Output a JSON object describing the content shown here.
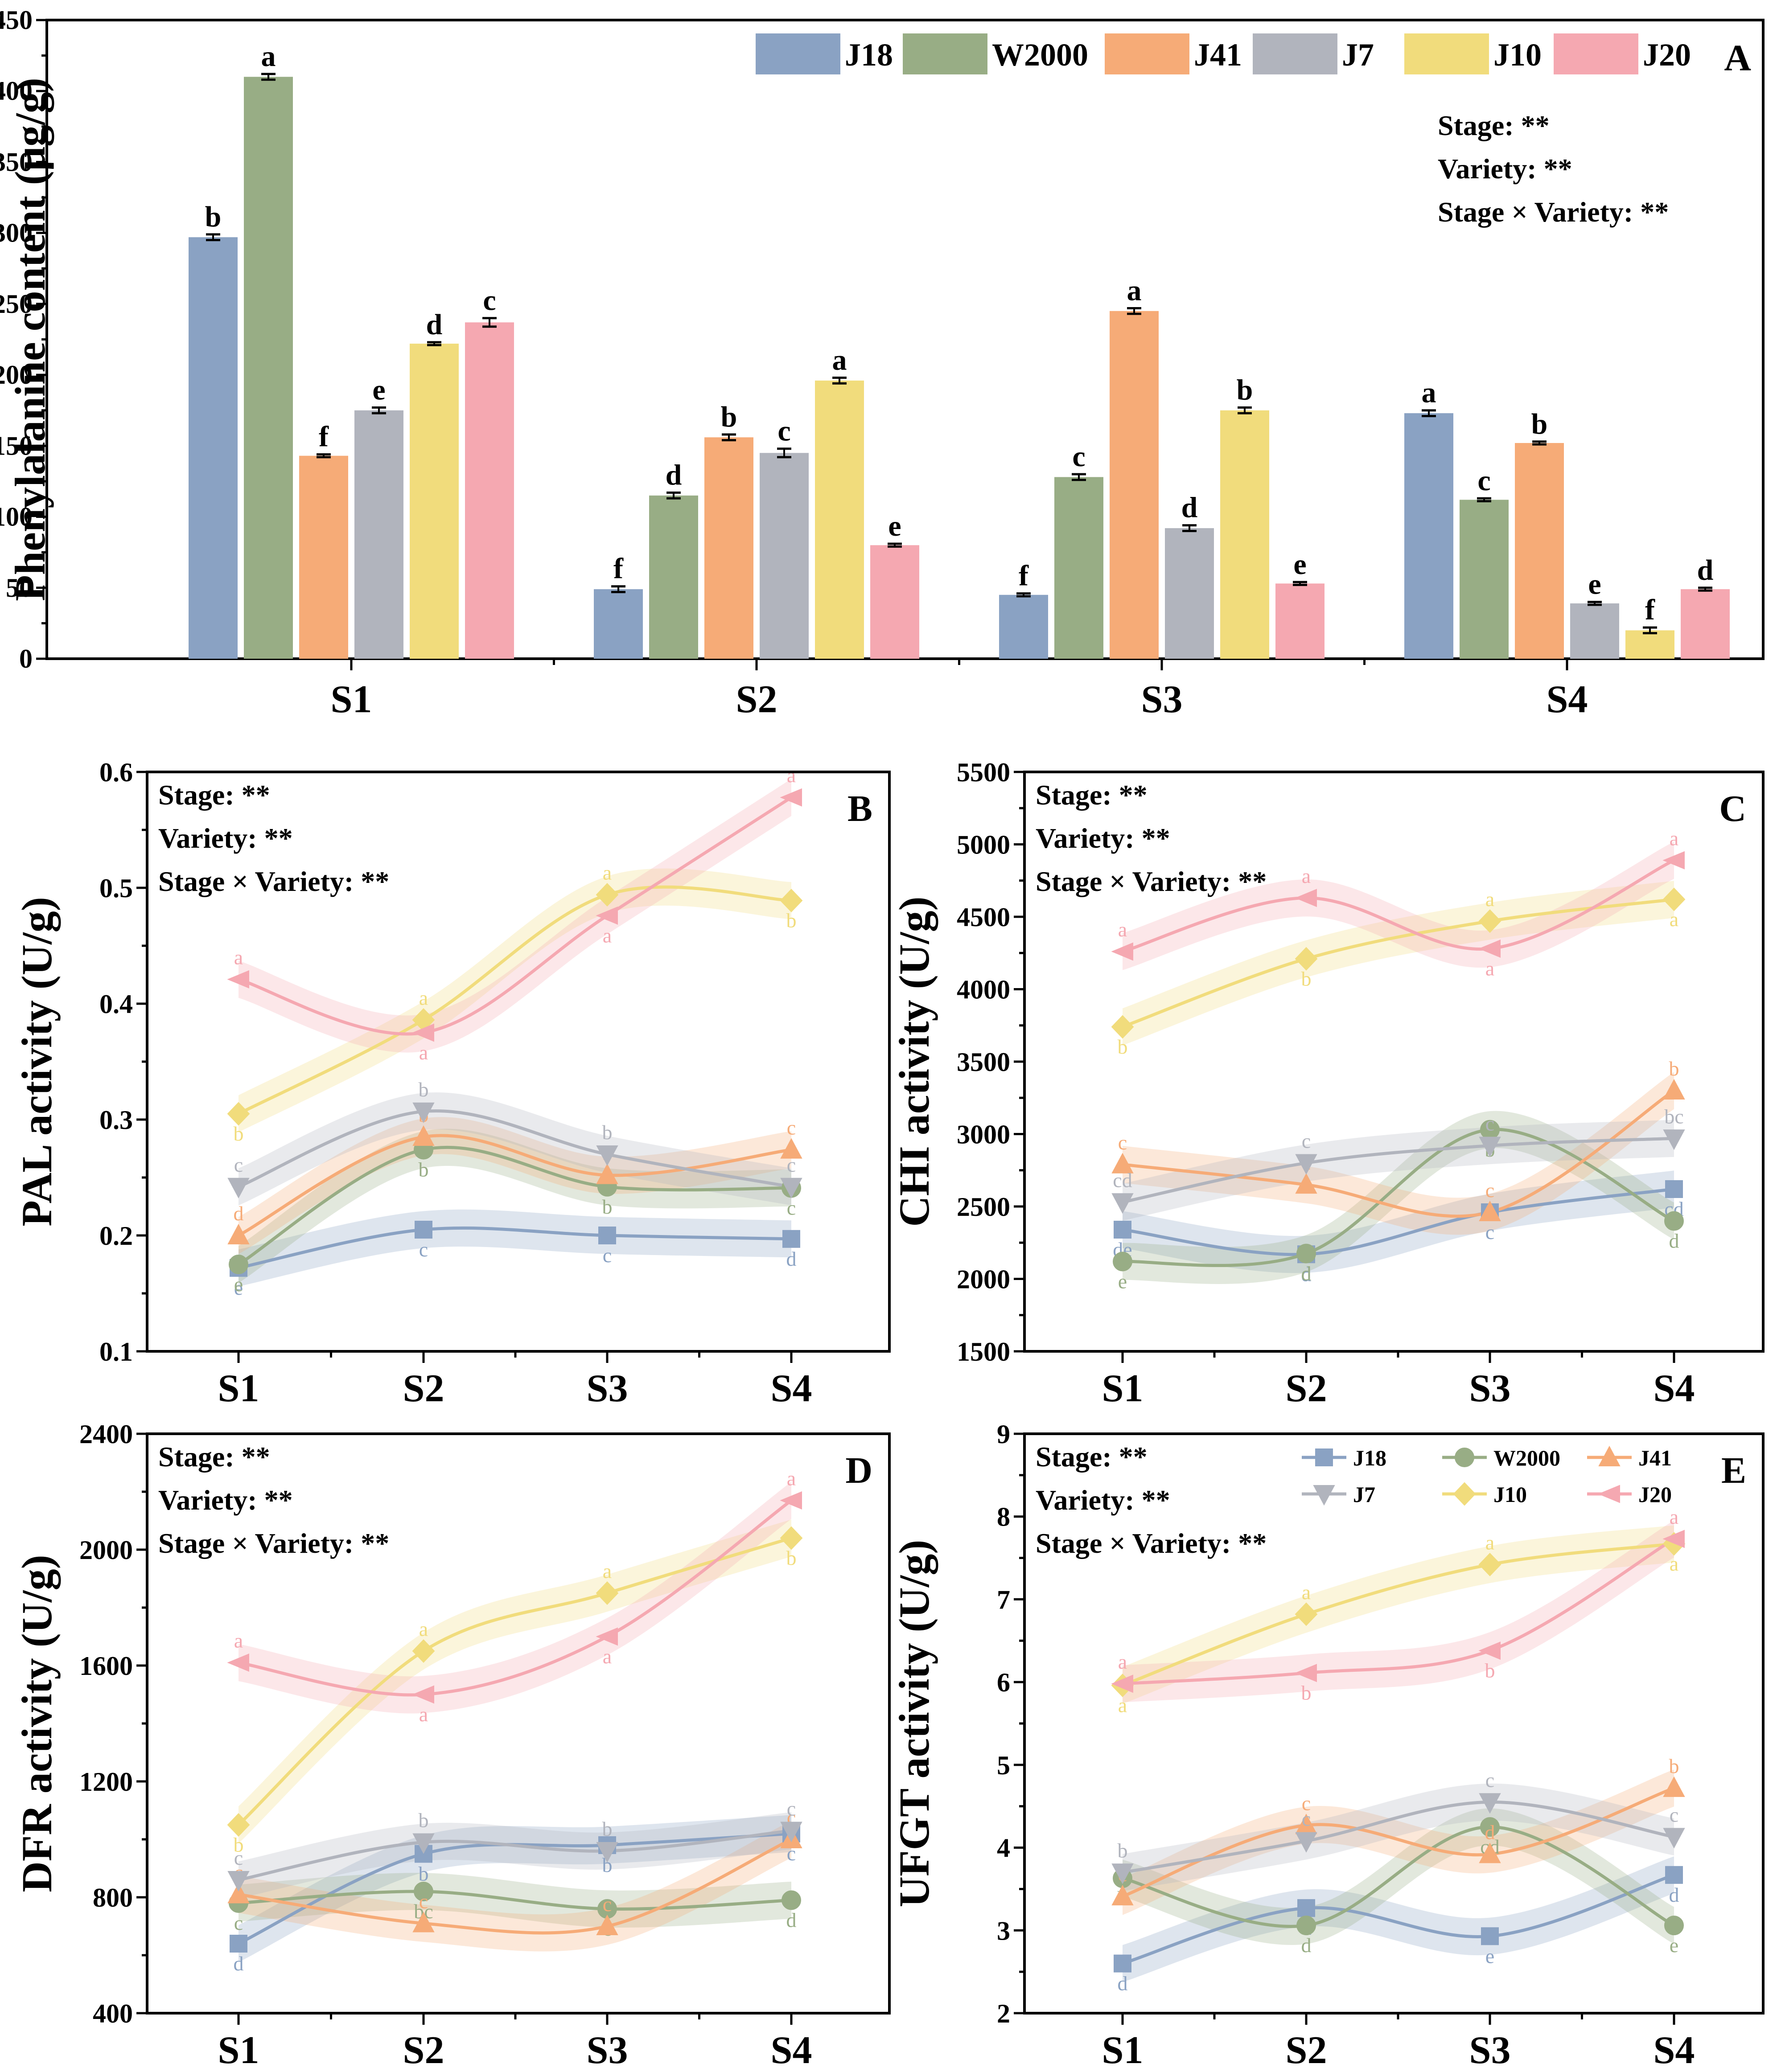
{
  "colors": {
    "J18": "#8aa2c3",
    "W2000": "#98ad85",
    "J41": "#f6ab77",
    "J7": "#b1b4bd",
    "J10": "#f1dc7c",
    "J20": "#f5a8b1"
  },
  "stats_lines": [
    "Stage: **",
    "Variety: **",
    "Stage × Variety: **"
  ],
  "chart_data": [
    {
      "panel": "A",
      "type": "bar",
      "ylabel": "Phenylalanine content (μg/g)",
      "ylim": [
        0,
        450
      ],
      "yticks": [
        0,
        50,
        100,
        150,
        200,
        250,
        300,
        350,
        400,
        450
      ],
      "categories": [
        "S1",
        "S2",
        "S3",
        "S4"
      ],
      "series": [
        {
          "name": "J18",
          "values": [
            297,
            49,
            45,
            173
          ],
          "errors": [
            2,
            2,
            1,
            2
          ],
          "letters": [
            "b",
            "f",
            "f",
            "a"
          ]
        },
        {
          "name": "W2000",
          "values": [
            410,
            115,
            128,
            112
          ],
          "errors": [
            2,
            2,
            2,
            1
          ],
          "letters": [
            "a",
            "d",
            "c",
            "c"
          ]
        },
        {
          "name": "J41",
          "values": [
            143,
            156,
            245,
            152
          ],
          "errors": [
            1,
            2,
            2,
            1
          ],
          "letters": [
            "f",
            "b",
            "a",
            "b"
          ]
        },
        {
          "name": "J7",
          "values": [
            175,
            145,
            92,
            39
          ],
          "errors": [
            2,
            3,
            2,
            1
          ],
          "letters": [
            "e",
            "c",
            "d",
            "e"
          ]
        },
        {
          "name": "J10",
          "values": [
            222,
            196,
            175,
            20
          ],
          "errors": [
            1,
            2,
            2,
            2
          ],
          "letters": [
            "d",
            "a",
            "b",
            "f"
          ]
        },
        {
          "name": "J20",
          "values": [
            237,
            80,
            53,
            49
          ],
          "errors": [
            3,
            1,
            1,
            1
          ],
          "letters": [
            "c",
            "e",
            "e",
            "d"
          ]
        }
      ]
    },
    {
      "panel": "B",
      "type": "line",
      "ylabel": "PAL activity (U/g)",
      "ylim": [
        0.1,
        0.6
      ],
      "yticks": [
        0.1,
        0.2,
        0.3,
        0.4,
        0.5,
        0.6
      ],
      "x": [
        "S1",
        "S2",
        "S3",
        "S4"
      ],
      "series": [
        {
          "name": "J18",
          "values": [
            0.172,
            0.205,
            0.2,
            0.197
          ],
          "letters": [
            "e",
            "c",
            "c",
            "d"
          ]
        },
        {
          "name": "W2000",
          "values": [
            0.175,
            0.274,
            0.242,
            0.241
          ],
          "letters": [
            "e",
            "b",
            "b",
            "c"
          ]
        },
        {
          "name": "J41",
          "values": [
            0.2,
            0.285,
            0.252,
            0.274
          ],
          "letters": [
            "d",
            "b",
            "b",
            "c"
          ]
        },
        {
          "name": "J7",
          "values": [
            0.242,
            0.307,
            0.27,
            0.242
          ],
          "letters": [
            "c",
            "b",
            "b",
            "c"
          ]
        },
        {
          "name": "J10",
          "values": [
            0.305,
            0.386,
            0.494,
            0.489
          ],
          "letters": [
            "b",
            "a",
            "a",
            "b"
          ]
        },
        {
          "name": "J20",
          "values": [
            0.421,
            0.375,
            0.476,
            0.578
          ],
          "letters": [
            "a",
            "a",
            "a",
            "a"
          ]
        }
      ]
    },
    {
      "panel": "C",
      "type": "line",
      "ylabel": "CHI activity (U/g)",
      "ylim": [
        1500,
        5500
      ],
      "yticks": [
        1500,
        2000,
        2500,
        3000,
        3500,
        4000,
        4500,
        5000,
        5500
      ],
      "x": [
        "S1",
        "S2",
        "S3",
        "S4"
      ],
      "series": [
        {
          "name": "J18",
          "values": [
            2340,
            2170,
            2460,
            2620
          ],
          "letters": [
            "de",
            "d",
            "c",
            "cd"
          ]
        },
        {
          "name": "W2000",
          "values": [
            2120,
            2175,
            3030,
            2400
          ],
          "letters": [
            "e",
            "d",
            "b",
            "d"
          ]
        },
        {
          "name": "J41",
          "values": [
            2790,
            2650,
            2460,
            3300
          ],
          "letters": [
            "c",
            "c",
            "c",
            "b"
          ]
        },
        {
          "name": "J7",
          "values": [
            2530,
            2800,
            2920,
            2970
          ],
          "letters": [
            "cd",
            "c",
            "c",
            "bc"
          ]
        },
        {
          "name": "J10",
          "values": [
            3740,
            4210,
            4470,
            4620
          ],
          "letters": [
            "b",
            "b",
            "a",
            "a"
          ]
        },
        {
          "name": "J20",
          "values": [
            4260,
            4630,
            4280,
            4890
          ],
          "letters": [
            "a",
            "a",
            "a",
            "a"
          ]
        }
      ]
    },
    {
      "panel": "D",
      "type": "line",
      "ylabel": "DFR activity (U/g)",
      "ylim": [
        400,
        2400
      ],
      "yticks": [
        400,
        800,
        1200,
        1600,
        2000,
        2400
      ],
      "x": [
        "S1",
        "S2",
        "S3",
        "S4"
      ],
      "series": [
        {
          "name": "J18",
          "values": [
            640,
            950,
            980,
            1020
          ],
          "letters": [
            "d",
            "b",
            "b",
            "c"
          ]
        },
        {
          "name": "W2000",
          "values": [
            780,
            820,
            760,
            790
          ],
          "letters": [
            "c",
            "bc",
            "c",
            "d"
          ]
        },
        {
          "name": "J41",
          "values": [
            810,
            710,
            700,
            1000
          ],
          "letters": [
            "c",
            "c",
            "c",
            "c"
          ]
        },
        {
          "name": "J7",
          "values": [
            860,
            990,
            960,
            1030
          ],
          "letters": [
            "c",
            "b",
            "b",
            "c"
          ]
        },
        {
          "name": "J10",
          "values": [
            1050,
            1650,
            1850,
            2040
          ],
          "letters": [
            "b",
            "a",
            "a",
            "b"
          ]
        },
        {
          "name": "J20",
          "values": [
            1610,
            1500,
            1700,
            2170
          ],
          "letters": [
            "a",
            "a",
            "a",
            "a"
          ]
        }
      ]
    },
    {
      "panel": "E",
      "type": "line",
      "ylabel": "UFGT activity (U/g)",
      "ylim": [
        2,
        9
      ],
      "yticks": [
        2,
        3,
        4,
        5,
        6,
        7,
        8,
        9
      ],
      "x": [
        "S1",
        "S2",
        "S3",
        "S4"
      ],
      "series": [
        {
          "name": "J18",
          "values": [
            2.6,
            3.27,
            2.93,
            3.67
          ],
          "letters": [
            "d",
            "d",
            "e",
            "d"
          ]
        },
        {
          "name": "W2000",
          "values": [
            3.63,
            3.06,
            4.25,
            3.06
          ],
          "letters": [
            "b",
            "d",
            "cd",
            "e"
          ]
        },
        {
          "name": "J41",
          "values": [
            3.41,
            4.27,
            3.92,
            4.72
          ],
          "letters": [
            "c",
            "c",
            "d",
            "b"
          ]
        },
        {
          "name": "J7",
          "values": [
            3.7,
            4.08,
            4.55,
            4.13
          ],
          "letters": [
            "b",
            "c",
            "c",
            "c"
          ]
        },
        {
          "name": "J10",
          "values": [
            5.96,
            6.82,
            7.42,
            7.67
          ],
          "letters": [
            "a",
            "a",
            "a",
            "a"
          ]
        },
        {
          "name": "J20",
          "values": [
            5.98,
            6.11,
            6.38,
            7.73
          ],
          "letters": [
            "a",
            "b",
            "b",
            "a"
          ]
        }
      ]
    }
  ]
}
